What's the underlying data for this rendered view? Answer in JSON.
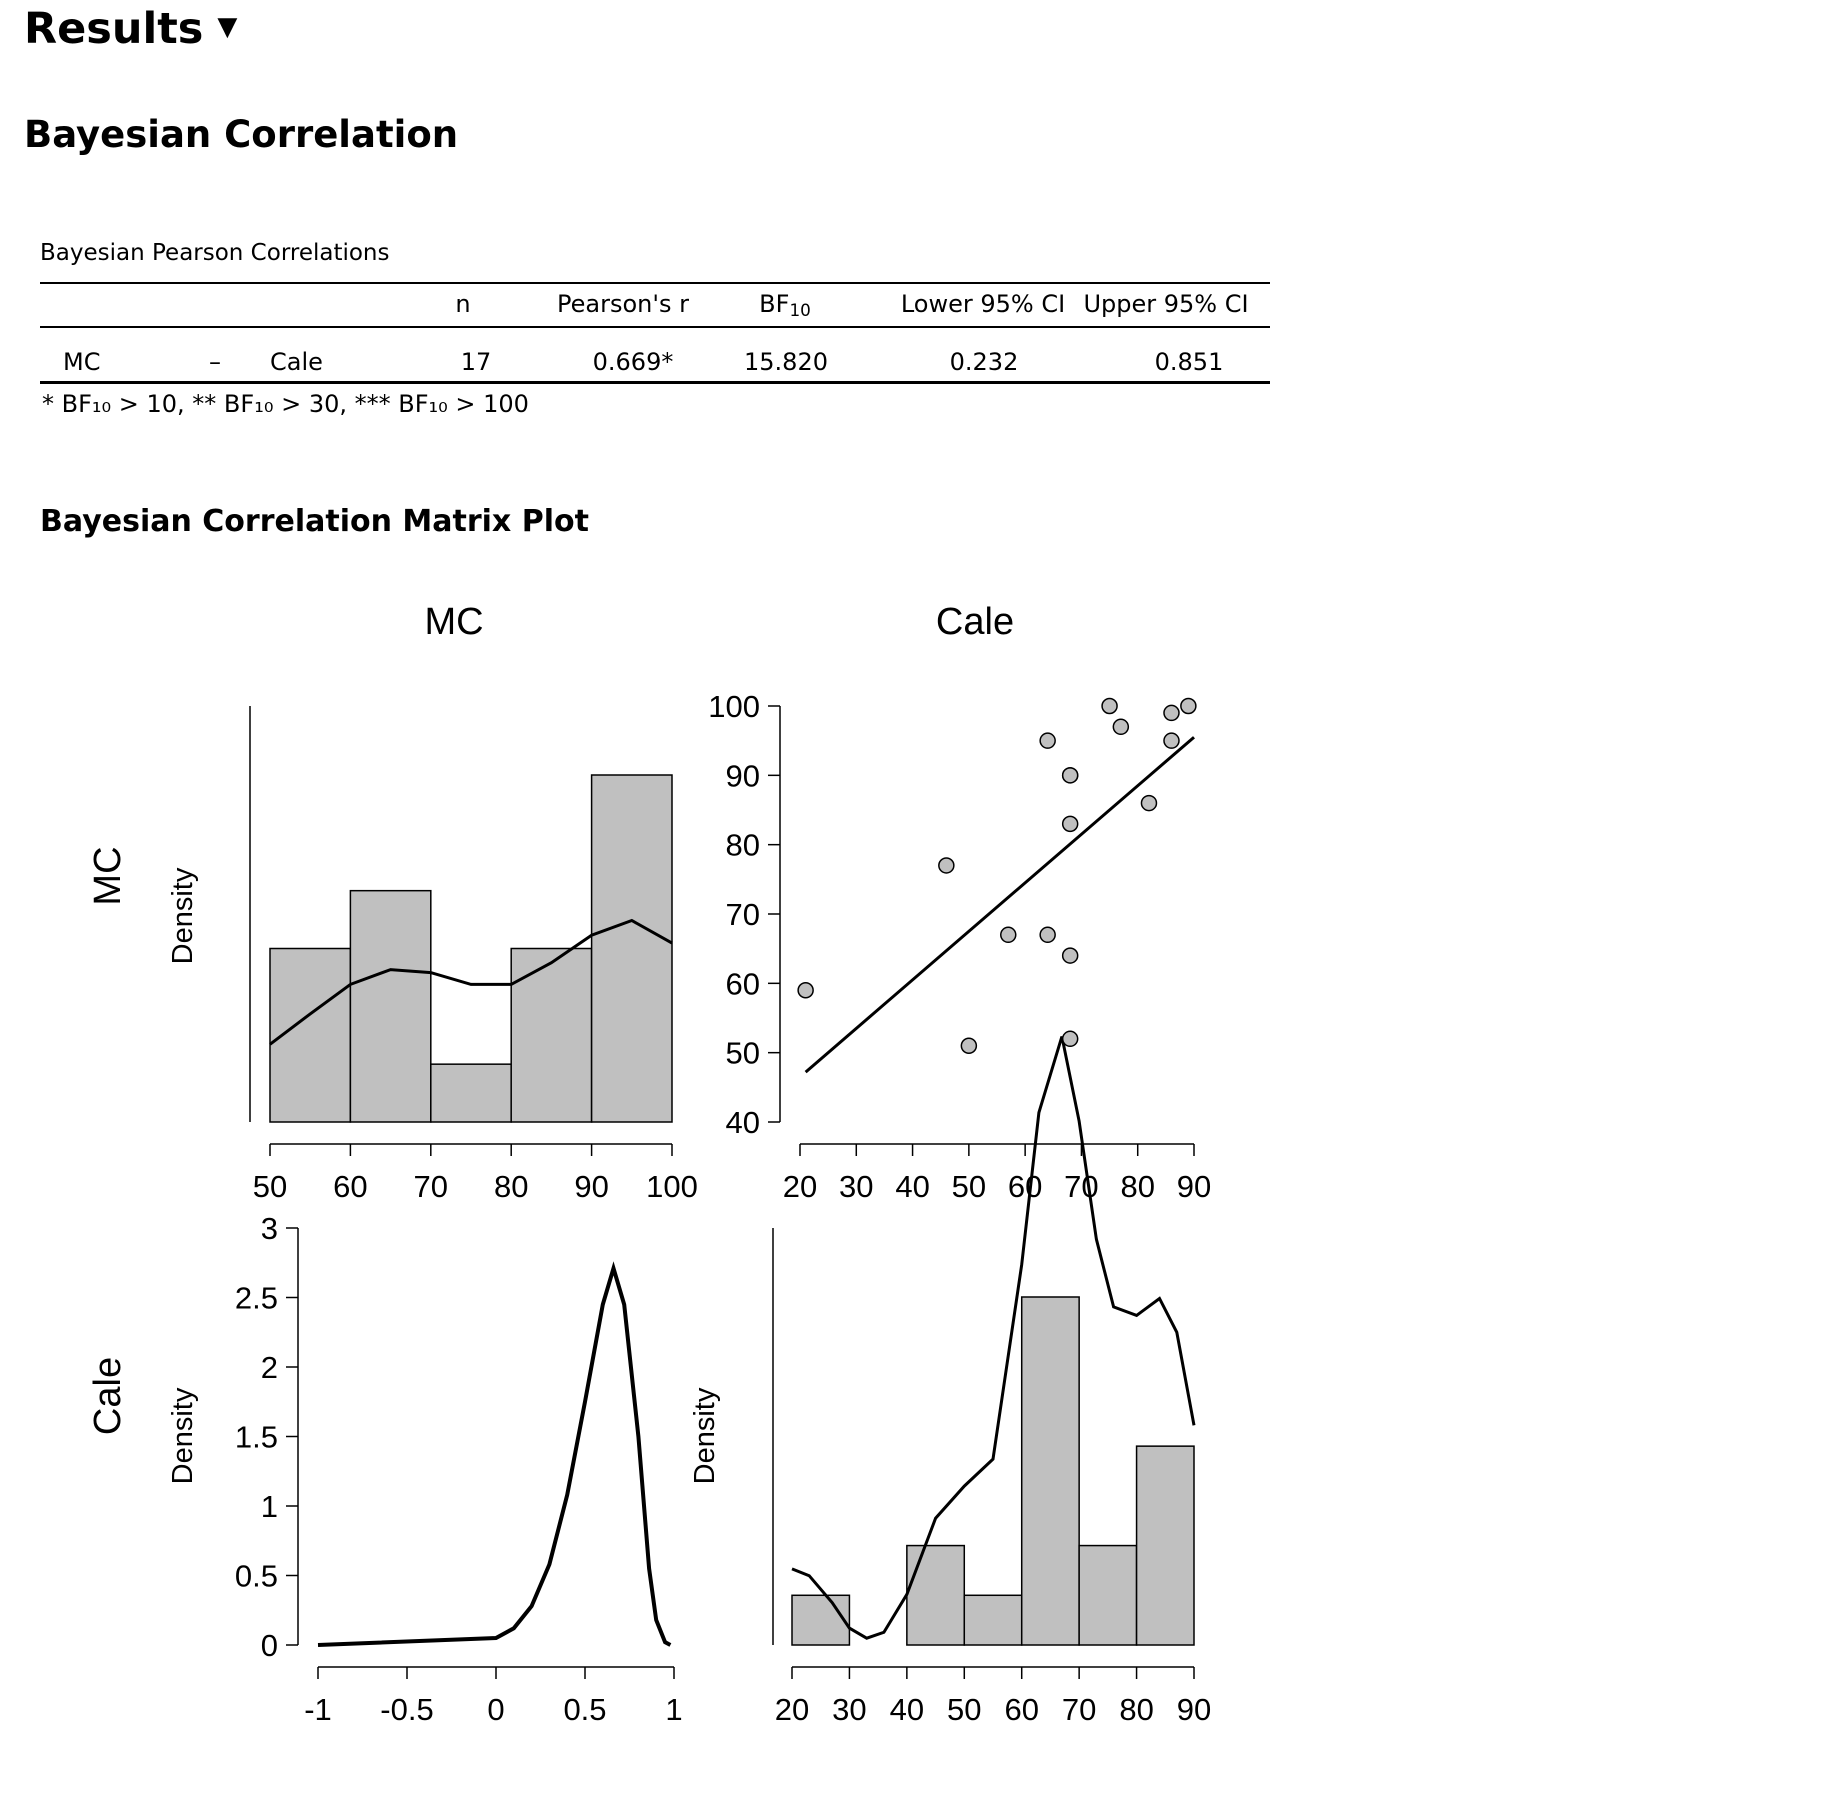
{
  "header": {
    "results_label": "Results",
    "caret": "▼"
  },
  "section": {
    "title": "Bayesian Correlation"
  },
  "table": {
    "title": "Bayesian Pearson Correlations",
    "columns": {
      "n": "n",
      "pearson": "Pearson's r",
      "bf_main": "BF",
      "bf_sub": "10",
      "lower": "Lower 95% CI",
      "upper": "Upper 95% CI"
    },
    "row": {
      "var1": "MC",
      "dash": "–",
      "var2": "Cale",
      "n": "17",
      "pearson": "0.669*",
      "bf": "15.820",
      "lower": "0.232",
      "upper": "0.851"
    },
    "footnote": "*  BF₁₀ > 10, ** BF₁₀ > 30, *** BF₁₀ > 100"
  },
  "plot_title": "Bayesian Correlation Matrix Plot",
  "chart_data": [
    {
      "type": "bar",
      "panel": "MC histogram",
      "bins": [
        [
          50,
          60
        ],
        [
          60,
          70
        ],
        [
          70,
          80
        ],
        [
          80,
          90
        ],
        [
          90,
          100
        ]
      ],
      "counts": [
        3,
        4,
        1,
        3,
        6
      ],
      "density_curve": [
        [
          50,
          0.0079
        ],
        [
          55,
          0.011
        ],
        [
          60,
          0.014
        ],
        [
          65,
          0.0155
        ],
        [
          70,
          0.0152
        ],
        [
          75,
          0.014
        ],
        [
          80,
          0.014
        ],
        [
          85,
          0.0162
        ],
        [
          90,
          0.019
        ],
        [
          95,
          0.0205
        ],
        [
          100,
          0.0182
        ]
      ],
      "xlim": [
        50,
        100
      ],
      "x_ticks": [
        "50",
        "60",
        "70",
        "80",
        "90",
        "100"
      ],
      "ylabel": "Density",
      "col_label": "MC",
      "row_label": "MC"
    },
    {
      "type": "scatter",
      "panel": "MC vs Cale scatter",
      "x": [
        21,
        46,
        50,
        57,
        64,
        64,
        68,
        68,
        68,
        68,
        68,
        75,
        77,
        82,
        86,
        86,
        89
      ],
      "y": [
        59,
        77,
        51,
        67,
        67,
        95,
        52,
        64,
        83,
        90,
        90,
        100,
        97,
        86,
        95,
        99,
        100
      ],
      "regression": [
        [
          21,
          47.2
        ],
        [
          90,
          95.5
        ]
      ],
      "xlim": [
        20,
        90
      ],
      "ylim": [
        40,
        100
      ],
      "x_ticks": [
        "20",
        "30",
        "40",
        "50",
        "60",
        "70",
        "80",
        "90"
      ],
      "y_ticks": [
        "40",
        "50",
        "60",
        "70",
        "80",
        "90",
        "100"
      ],
      "col_label": "Cale"
    },
    {
      "type": "line",
      "panel": "Posterior density of rho",
      "points": [
        [
          -1,
          0
        ],
        [
          0,
          0.05
        ],
        [
          0.1,
          0.12
        ],
        [
          0.2,
          0.28
        ],
        [
          0.3,
          0.58
        ],
        [
          0.4,
          1.08
        ],
        [
          0.5,
          1.75
        ],
        [
          0.6,
          2.45
        ],
        [
          0.66,
          2.71
        ],
        [
          0.72,
          2.45
        ],
        [
          0.8,
          1.5
        ],
        [
          0.86,
          0.55
        ],
        [
          0.9,
          0.18
        ],
        [
          0.95,
          0.02
        ],
        [
          0.98,
          0
        ]
      ],
      "xlim": [
        -1,
        1
      ],
      "ylim": [
        0,
        3
      ],
      "x_ticks": [
        "-1",
        "-0.5",
        "0",
        "0.5",
        "1"
      ],
      "y_ticks": [
        "0",
        "0.5",
        "1",
        "1.5",
        "2",
        "2.5",
        "3"
      ],
      "ylabel": "Density",
      "row_label": "Cale"
    },
    {
      "type": "bar",
      "panel": "Cale histogram",
      "bins": [
        [
          20,
          30
        ],
        [
          30,
          40
        ],
        [
          40,
          50
        ],
        [
          50,
          60
        ],
        [
          60,
          70
        ],
        [
          70,
          80
        ],
        [
          80,
          90
        ]
      ],
      "counts": [
        1,
        0,
        2,
        1,
        7,
        2,
        4
      ],
      "density_curve": [
        [
          20,
          0.009
        ],
        [
          23,
          0.0082
        ],
        [
          27,
          0.005
        ],
        [
          30,
          0.002
        ],
        [
          33,
          0.0008
        ],
        [
          36,
          0.0015
        ],
        [
          40,
          0.006
        ],
        [
          45,
          0.015
        ],
        [
          50,
          0.0188
        ],
        [
          55,
          0.022
        ],
        [
          60,
          0.045
        ],
        [
          63,
          0.063
        ],
        [
          67,
          0.072
        ],
        [
          70,
          0.062
        ],
        [
          73,
          0.048
        ],
        [
          76,
          0.04
        ],
        [
          80,
          0.039
        ],
        [
          84,
          0.041
        ],
        [
          87,
          0.037
        ],
        [
          90,
          0.026
        ]
      ],
      "xlim": [
        20,
        90
      ],
      "x_ticks": [
        "20",
        "30",
        "40",
        "50",
        "60",
        "70",
        "80",
        "90"
      ],
      "ylabel": "Density"
    }
  ]
}
